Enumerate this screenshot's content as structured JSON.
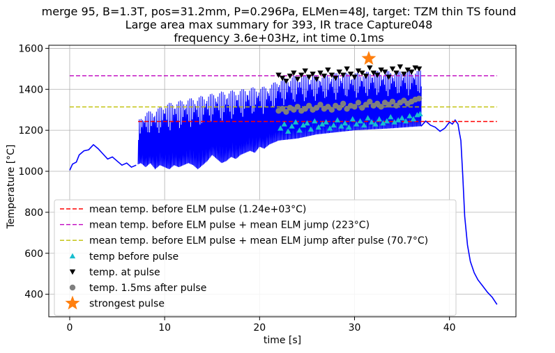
{
  "chart_data": {
    "type": "line",
    "title_lines": [
      "merge 95, B=1.3T, pos=31.2mm, P=0.296Pa, ELMen=48J, target: TZM thin TS found",
      "Large area max summary for 393, IR trace Capture048",
      "frequency 3.6e+03Hz, int time 0.1ms"
    ],
    "xlabel": "time [s]",
    "ylabel": "Temperature [°C]",
    "xlim": [
      -2.2,
      47.0
    ],
    "ylim": [
      290,
      1615
    ],
    "xticks": [
      0,
      10,
      20,
      30,
      40
    ],
    "yticks": [
      400,
      600,
      800,
      1000,
      1200,
      1400,
      1600
    ],
    "grid": true,
    "legend_position": "lower-left",
    "colors": {
      "trace": "#0000ff",
      "mean_before": "#ff0000",
      "mean_plus_jump": "#bf00bf",
      "mean_plus_jump_after": "#bfbf00",
      "before_pulse": "#17becf",
      "at_pulse": "#000000",
      "after_pulse": "#7f7f7f",
      "strongest": "#ff7f0e"
    },
    "legend": [
      {
        "key": "mean_before",
        "label": "mean temp. before ELM pulse (1.24e+03°C)",
        "marker": "dashed-line"
      },
      {
        "key": "mean_plus_jump",
        "label": "mean temp. before ELM pulse + mean ELM jump (223°C)",
        "marker": "dashed-line"
      },
      {
        "key": "mean_plus_jump_after",
        "label": "mean temp. before ELM pulse + mean ELM jump after pulse (70.7°C)",
        "marker": "dashed-line"
      },
      {
        "key": "before_pulse",
        "label": "temp before pulse",
        "marker": "triangle-up"
      },
      {
        "key": "at_pulse",
        "label": "temp. at pulse",
        "marker": "triangle-down"
      },
      {
        "key": "after_pulse",
        "label": "temp. 1.5ms after pulse",
        "marker": "circle"
      },
      {
        "key": "strongest",
        "label": "strongest pulse",
        "marker": "star"
      }
    ],
    "hlines": [
      {
        "key": "mean_before",
        "y": 1243,
        "xrange": [
          7.2,
          45.0
        ]
      },
      {
        "key": "mean_plus_jump",
        "y": 1466,
        "xrange": [
          0.0,
          45.0
        ]
      },
      {
        "key": "mean_plus_jump_after",
        "y": 1314,
        "xrange": [
          0.0,
          45.0
        ]
      }
    ],
    "trace_baseline": [
      [
        0.0,
        1005
      ],
      [
        0.3,
        1035
      ],
      [
        0.7,
        1045
      ],
      [
        1.0,
        1080
      ],
      [
        1.5,
        1100
      ],
      [
        2.0,
        1105
      ],
      [
        2.5,
        1130
      ],
      [
        3.0,
        1110
      ],
      [
        3.5,
        1085
      ],
      [
        4.0,
        1060
      ],
      [
        4.5,
        1070
      ],
      [
        5.0,
        1050
      ],
      [
        5.5,
        1030
      ],
      [
        6.0,
        1040
      ],
      [
        6.5,
        1020
      ],
      [
        7.0,
        1030
      ],
      [
        7.5,
        1040
      ],
      [
        8.0,
        1020
      ],
      [
        8.5,
        1040
      ],
      [
        9.0,
        1010
      ],
      [
        9.5,
        1030
      ],
      [
        10.0,
        1020
      ],
      [
        10.5,
        1010
      ],
      [
        11.0,
        1030
      ],
      [
        11.5,
        1020
      ],
      [
        12.0,
        1030
      ],
      [
        12.5,
        1040
      ],
      [
        13.0,
        1030
      ],
      [
        13.5,
        1010
      ],
      [
        14.0,
        1030
      ],
      [
        14.5,
        1050
      ],
      [
        15.0,
        1080
      ],
      [
        15.5,
        1060
      ],
      [
        16.0,
        1040
      ],
      [
        16.5,
        1050
      ],
      [
        17.0,
        1070
      ],
      [
        17.5,
        1060
      ],
      [
        18.0,
        1080
      ],
      [
        18.5,
        1090
      ],
      [
        19.0,
        1100
      ],
      [
        19.5,
        1090
      ],
      [
        20.0,
        1120
      ],
      [
        20.5,
        1110
      ],
      [
        21.0,
        1130
      ],
      [
        22.0,
        1150
      ],
      [
        24.0,
        1160
      ],
      [
        26.0,
        1180
      ],
      [
        28.0,
        1190
      ],
      [
        30.0,
        1200
      ],
      [
        32.0,
        1205
      ],
      [
        34.0,
        1210
      ],
      [
        37.0,
        1220
      ]
    ],
    "trace_envelope_top": [
      [
        7.2,
        1250
      ],
      [
        8.0,
        1290
      ],
      [
        9.0,
        1300
      ],
      [
        10.0,
        1330
      ],
      [
        11.0,
        1340
      ],
      [
        12.0,
        1350
      ],
      [
        13.0,
        1360
      ],
      [
        14.0,
        1370
      ],
      [
        15.0,
        1380
      ],
      [
        16.0,
        1390
      ],
      [
        17.0,
        1395
      ],
      [
        18.0,
        1400
      ],
      [
        19.0,
        1410
      ],
      [
        20.0,
        1410
      ],
      [
        21.0,
        1420
      ],
      [
        22.0,
        1450
      ],
      [
        24.0,
        1470
      ],
      [
        26.0,
        1470
      ],
      [
        28.0,
        1480
      ],
      [
        30.0,
        1480
      ],
      [
        32.0,
        1490
      ],
      [
        34.0,
        1490
      ],
      [
        36.0,
        1495
      ],
      [
        37.0,
        1495
      ]
    ],
    "trace_tail": [
      [
        37.0,
        1220
      ],
      [
        37.5,
        1245
      ],
      [
        38.0,
        1225
      ],
      [
        38.5,
        1215
      ],
      [
        39.0,
        1195
      ],
      [
        39.5,
        1210
      ],
      [
        40.0,
        1240
      ],
      [
        40.3,
        1230
      ],
      [
        40.6,
        1250
      ],
      [
        40.9,
        1230
      ],
      [
        41.0,
        1200
      ],
      [
        41.2,
        1150
      ],
      [
        41.4,
        980
      ],
      [
        41.6,
        780
      ],
      [
        41.9,
        640
      ],
      [
        42.2,
        560
      ],
      [
        42.6,
        505
      ],
      [
        43.0,
        470
      ],
      [
        43.5,
        440
      ],
      [
        44.0,
        410
      ],
      [
        44.5,
        385
      ],
      [
        45.0,
        350
      ]
    ],
    "temp_before_pulse": [
      [
        22.2,
        1210
      ],
      [
        22.6,
        1230
      ],
      [
        23.0,
        1195
      ],
      [
        23.4,
        1220
      ],
      [
        23.8,
        1240
      ],
      [
        24.2,
        1200
      ],
      [
        24.6,
        1225
      ],
      [
        25.0,
        1235
      ],
      [
        25.4,
        1205
      ],
      [
        25.8,
        1245
      ],
      [
        26.2,
        1215
      ],
      [
        26.6,
        1230
      ],
      [
        27.0,
        1240
      ],
      [
        27.4,
        1210
      ],
      [
        27.8,
        1225
      ],
      [
        28.2,
        1250
      ],
      [
        28.6,
        1220
      ],
      [
        29.0,
        1235
      ],
      [
        29.4,
        1215
      ],
      [
        29.8,
        1255
      ],
      [
        30.2,
        1230
      ],
      [
        30.6,
        1245
      ],
      [
        31.0,
        1225
      ],
      [
        31.4,
        1260
      ],
      [
        31.8,
        1240
      ],
      [
        32.2,
        1230
      ],
      [
        32.6,
        1255
      ],
      [
        33.0,
        1235
      ],
      [
        33.4,
        1245
      ],
      [
        33.8,
        1265
      ],
      [
        34.2,
        1240
      ],
      [
        34.6,
        1250
      ],
      [
        35.0,
        1260
      ],
      [
        35.4,
        1245
      ],
      [
        35.8,
        1270
      ],
      [
        36.2,
        1255
      ],
      [
        36.6,
        1275
      ],
      [
        36.9,
        1280
      ]
    ],
    "temp_at_pulse": [
      [
        22.0,
        1470
      ],
      [
        22.4,
        1455
      ],
      [
        22.8,
        1440
      ],
      [
        23.2,
        1465
      ],
      [
        23.6,
        1480
      ],
      [
        24.0,
        1450
      ],
      [
        24.4,
        1470
      ],
      [
        24.8,
        1490
      ],
      [
        25.2,
        1460
      ],
      [
        25.6,
        1475
      ],
      [
        26.0,
        1450
      ],
      [
        26.4,
        1480
      ],
      [
        26.8,
        1465
      ],
      [
        27.2,
        1495
      ],
      [
        27.6,
        1470
      ],
      [
        28.0,
        1455
      ],
      [
        28.4,
        1485
      ],
      [
        28.8,
        1470
      ],
      [
        29.2,
        1500
      ],
      [
        29.6,
        1475
      ],
      [
        30.0,
        1460
      ],
      [
        30.4,
        1490
      ],
      [
        30.8,
        1480
      ],
      [
        31.2,
        1465
      ],
      [
        31.6,
        1505
      ],
      [
        32.0,
        1480
      ],
      [
        32.4,
        1470
      ],
      [
        32.8,
        1495
      ],
      [
        33.2,
        1485
      ],
      [
        33.6,
        1460
      ],
      [
        34.0,
        1500
      ],
      [
        34.4,
        1480
      ],
      [
        34.8,
        1510
      ],
      [
        35.2,
        1475
      ],
      [
        35.6,
        1495
      ],
      [
        36.0,
        1485
      ],
      [
        36.4,
        1505
      ],
      [
        36.8,
        1500
      ]
    ],
    "temp_after_pulse": [
      [
        22.0,
        1295
      ],
      [
        22.4,
        1305
      ],
      [
        22.8,
        1290
      ],
      [
        23.2,
        1310
      ],
      [
        23.6,
        1300
      ],
      [
        24.0,
        1315
      ],
      [
        24.4,
        1295
      ],
      [
        24.8,
        1305
      ],
      [
        25.2,
        1320
      ],
      [
        25.6,
        1300
      ],
      [
        26.0,
        1310
      ],
      [
        26.4,
        1325
      ],
      [
        26.8,
        1305
      ],
      [
        27.2,
        1315
      ],
      [
        27.6,
        1300
      ],
      [
        28.0,
        1320
      ],
      [
        28.4,
        1310
      ],
      [
        28.8,
        1330
      ],
      [
        29.2,
        1305
      ],
      [
        29.6,
        1320
      ],
      [
        30.0,
        1315
      ],
      [
        30.4,
        1335
      ],
      [
        30.8,
        1310
      ],
      [
        31.2,
        1325
      ],
      [
        31.6,
        1340
      ],
      [
        32.0,
        1320
      ],
      [
        32.4,
        1330
      ],
      [
        32.8,
        1315
      ],
      [
        33.2,
        1335
      ],
      [
        33.6,
        1325
      ],
      [
        34.0,
        1340
      ],
      [
        34.4,
        1320
      ],
      [
        34.8,
        1335
      ],
      [
        35.2,
        1345
      ],
      [
        35.6,
        1330
      ],
      [
        36.0,
        1340
      ],
      [
        36.4,
        1350
      ],
      [
        36.8,
        1355
      ]
    ],
    "strongest_pulse": [
      31.5,
      1550
    ]
  }
}
